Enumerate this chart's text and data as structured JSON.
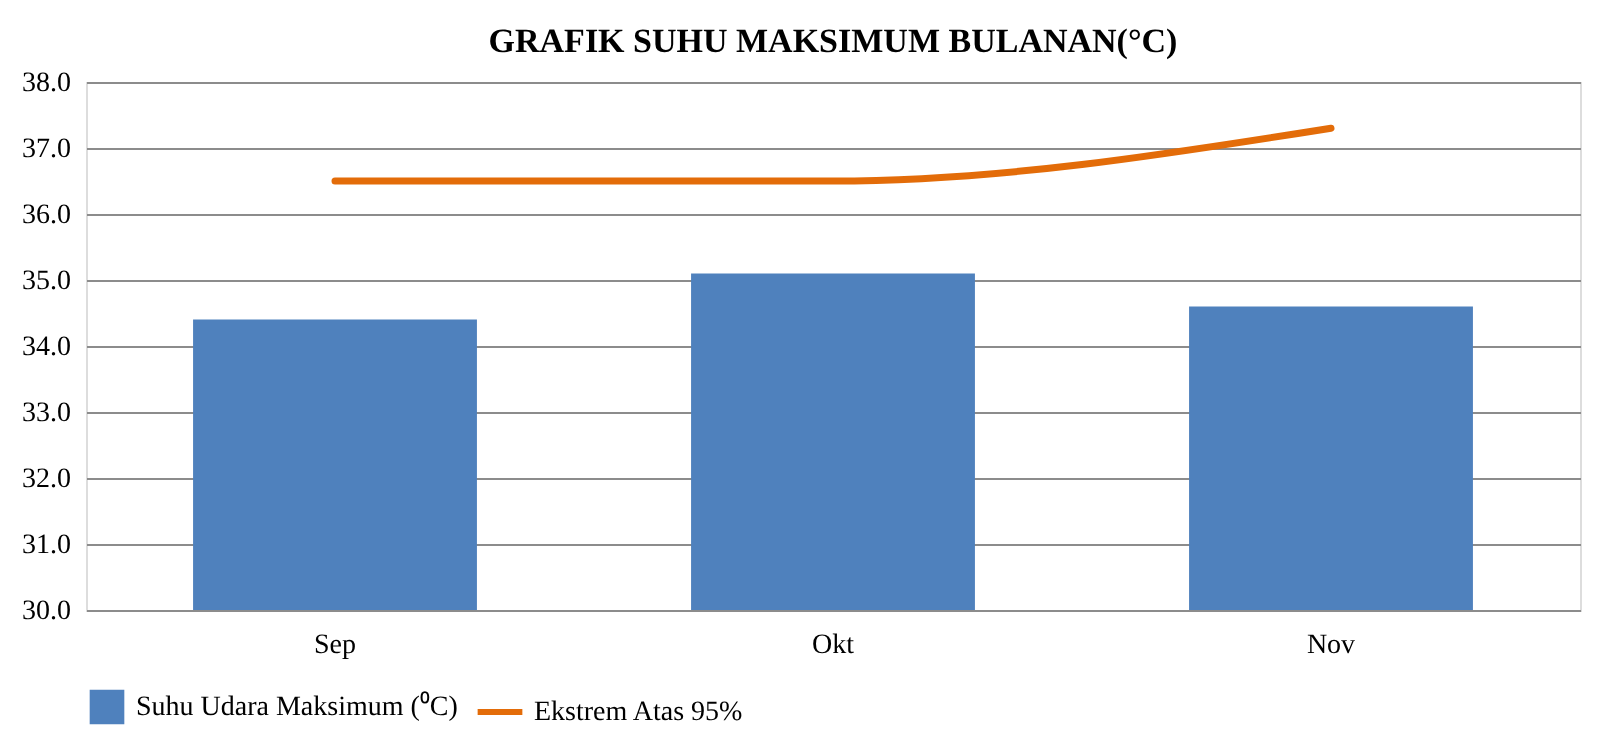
{
  "chart_data": {
    "type": "bar",
    "title": "GRAFIK SUHU MAKSIMUM BULANAN(°C)",
    "categories": [
      "Sep",
      "Okt",
      "Nov"
    ],
    "series": [
      {
        "name": "Suhu Udara Maksimum (⁰C)",
        "color": "#4f81bd",
        "values": [
          34.4,
          35.1,
          34.6
        ]
      },
      {
        "name": "Ekstrem Atas  95%",
        "type": "line",
        "color": "#e36c09",
        "values": [
          36.5,
          36.5,
          37.3
        ],
        "line_style": "solid",
        "marker": "none"
      }
    ],
    "ylim": [
      30,
      38
    ],
    "yticks": [
      {
        "value": 30,
        "label": "30.0"
      },
      {
        "value": 31,
        "label": "31.0"
      },
      {
        "value": 32,
        "label": "32.0"
      },
      {
        "value": 33,
        "label": "33.0"
      },
      {
        "value": 34,
        "label": "34.0"
      },
      {
        "value": 35,
        "label": "35.0"
      },
      {
        "value": 36,
        "label": "36.0"
      },
      {
        "value": 37,
        "label": "37.0"
      },
      {
        "value": 38,
        "label": "38.0"
      }
    ],
    "grid": "y",
    "legend": "bottom"
  }
}
